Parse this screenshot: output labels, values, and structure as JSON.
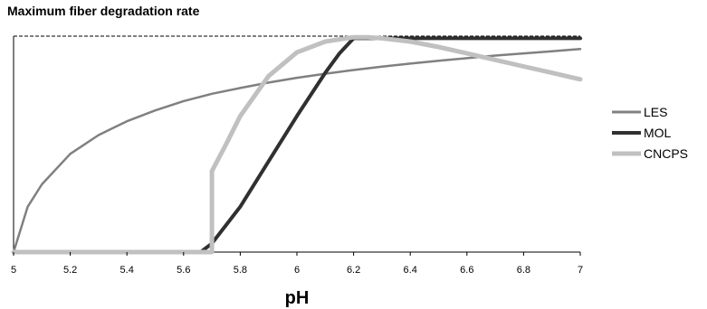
{
  "chart_data": {
    "type": "line",
    "title": "Maximum fiber degradation rate",
    "xlabel": "pH",
    "ylabel": "",
    "xlim": [
      5,
      7
    ],
    "ylim": [
      0,
      1
    ],
    "xticks": [
      "5",
      "5.2",
      "5.4",
      "5.6",
      "5.8",
      "6",
      "6.2",
      "6.4",
      "6.6",
      "6.8",
      "7"
    ],
    "grid": false,
    "reference_line": {
      "y": 1,
      "style": "dashed"
    },
    "legend_position": "right",
    "series": [
      {
        "name": "LES",
        "color": "#808080",
        "x": [
          5.0,
          5.05,
          5.1,
          5.2,
          5.3,
          5.4,
          5.5,
          5.6,
          5.7,
          5.8,
          5.9,
          6.0,
          6.1,
          6.2,
          6.3,
          6.4,
          6.5,
          6.6,
          6.7,
          6.8,
          6.9,
          7.0
        ],
        "y": [
          0.0,
          0.21,
          0.314,
          0.455,
          0.542,
          0.606,
          0.656,
          0.699,
          0.733,
          0.76,
          0.785,
          0.807,
          0.826,
          0.843,
          0.859,
          0.873,
          0.886,
          0.898,
          0.91,
          0.92,
          0.93,
          0.94
        ]
      },
      {
        "name": "MOL",
        "color": "#303030",
        "x": [
          5.0,
          5.66,
          5.7,
          5.8,
          5.9,
          6.0,
          6.1,
          6.15,
          6.2,
          6.3,
          7.0
        ],
        "y": [
          0.0,
          0.0,
          0.04,
          0.21,
          0.42,
          0.63,
          0.83,
          0.92,
          0.99,
          0.99,
          0.99
        ]
      },
      {
        "name": "CNCPS",
        "color": "#c0c0c0",
        "x": [
          5.0,
          5.7,
          5.7,
          5.75,
          5.8,
          5.9,
          6.0,
          6.1,
          6.2,
          6.25,
          6.3,
          6.4,
          6.5,
          6.6,
          6.7,
          6.8,
          6.9,
          7.0
        ],
        "y": [
          0.0,
          0.0,
          0.375,
          0.5,
          0.63,
          0.815,
          0.925,
          0.975,
          0.995,
          0.995,
          0.99,
          0.975,
          0.95,
          0.92,
          0.89,
          0.86,
          0.83,
          0.8
        ]
      }
    ]
  }
}
